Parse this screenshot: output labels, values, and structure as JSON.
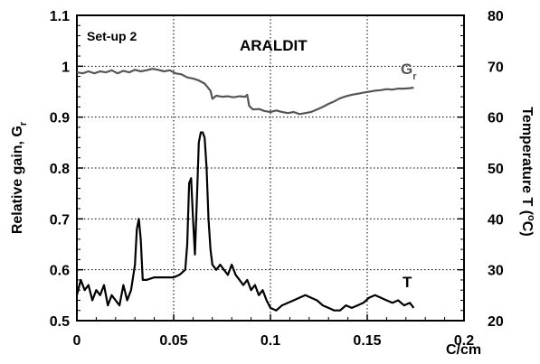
{
  "chart_data": {
    "type": "line",
    "title": "",
    "annotations": {
      "setup": "Set-up 2",
      "material": "ARALDIT"
    },
    "xlabel": "C/cm",
    "ylabel_left_main": "Relative gain, G",
    "ylabel_left_sub": "r",
    "ylabel_right_main": "Temperature T (",
    "ylabel_right_sup": "o",
    "ylabel_right_end": "C)",
    "xlim": [
      0,
      0.2
    ],
    "ylim_left": [
      0.5,
      1.1
    ],
    "ylim_right": [
      20,
      80
    ],
    "x_ticks": [
      "0",
      "0.05",
      "0.1",
      "0.15",
      "0.2"
    ],
    "y_left_ticks": [
      "0.5",
      "0.6",
      "0.7",
      "0.8",
      "0.9",
      "1",
      "1.1"
    ],
    "y_right_ticks": [
      "20",
      "30",
      "40",
      "50",
      "60",
      "70",
      "80"
    ],
    "grid": true,
    "series": [
      {
        "name_main": "G",
        "name_sub": "r",
        "axis": "left",
        "color": "#555555",
        "x": [
          0,
          0.003,
          0.006,
          0.009,
          0.012,
          0.015,
          0.018,
          0.021,
          0.024,
          0.027,
          0.03,
          0.033,
          0.036,
          0.039,
          0.042,
          0.045,
          0.048,
          0.051,
          0.054,
          0.057,
          0.06,
          0.063,
          0.066,
          0.069,
          0.07,
          0.072,
          0.075,
          0.078,
          0.081,
          0.084,
          0.087,
          0.088,
          0.089,
          0.091,
          0.094,
          0.097,
          0.1,
          0.103,
          0.106,
          0.109,
          0.112,
          0.115,
          0.118,
          0.121,
          0.124,
          0.127,
          0.13,
          0.133,
          0.136,
          0.139,
          0.142,
          0.145,
          0.148,
          0.151,
          0.154,
          0.157,
          0.16,
          0.163,
          0.166,
          0.169,
          0.172,
          0.174
        ],
        "values": [
          0.988,
          0.986,
          0.99,
          0.986,
          0.99,
          0.988,
          0.992,
          0.986,
          0.991,
          0.988,
          0.993,
          0.99,
          0.992,
          0.995,
          0.993,
          0.99,
          0.992,
          0.986,
          0.984,
          0.978,
          0.976,
          0.972,
          0.966,
          0.952,
          0.936,
          0.942,
          0.94,
          0.941,
          0.939,
          0.941,
          0.94,
          0.944,
          0.922,
          0.915,
          0.916,
          0.912,
          0.91,
          0.913,
          0.91,
          0.908,
          0.91,
          0.906,
          0.908,
          0.91,
          0.915,
          0.92,
          0.926,
          0.931,
          0.937,
          0.941,
          0.944,
          0.946,
          0.948,
          0.95,
          0.952,
          0.953,
          0.955,
          0.954,
          0.956,
          0.956,
          0.957,
          0.958
        ]
      },
      {
        "name_main": "T",
        "name_sub": "",
        "axis": "right",
        "color": "#000000",
        "x": [
          0,
          0.002,
          0.004,
          0.006,
          0.008,
          0.01,
          0.012,
          0.014,
          0.016,
          0.018,
          0.02,
          0.022,
          0.024,
          0.026,
          0.028,
          0.03,
          0.031,
          0.032,
          0.033,
          0.034,
          0.036,
          0.04,
          0.045,
          0.05,
          0.053,
          0.056,
          0.057,
          0.058,
          0.059,
          0.06,
          0.061,
          0.062,
          0.063,
          0.064,
          0.065,
          0.066,
          0.067,
          0.068,
          0.069,
          0.07,
          0.072,
          0.074,
          0.076,
          0.078,
          0.08,
          0.082,
          0.084,
          0.086,
          0.088,
          0.09,
          0.092,
          0.094,
          0.096,
          0.098,
          0.1,
          0.103,
          0.106,
          0.109,
          0.112,
          0.115,
          0.118,
          0.121,
          0.124,
          0.127,
          0.13,
          0.133,
          0.136,
          0.139,
          0.142,
          0.145,
          0.148,
          0.151,
          0.154,
          0.157,
          0.16,
          0.163,
          0.166,
          0.169,
          0.172,
          0.174
        ],
        "values": [
          25,
          28,
          26,
          27,
          24,
          26,
          25,
          27,
          23,
          25,
          24,
          23,
          27,
          24,
          26,
          31,
          38,
          40,
          36,
          28,
          28,
          28.5,
          28.5,
          28.5,
          29,
          30,
          35,
          47,
          48,
          40,
          33,
          44,
          55,
          57,
          57,
          56,
          50,
          40,
          34,
          31,
          30,
          31,
          30,
          29,
          31,
          29,
          28,
          27,
          28,
          26,
          27,
          25,
          26,
          24,
          22.5,
          22,
          23,
          23.5,
          24,
          24.5,
          25,
          24.5,
          24,
          23,
          22.5,
          22,
          22,
          23,
          22.5,
          23,
          23.5,
          24.5,
          25,
          24.5,
          24,
          23.5,
          24,
          23,
          23.5,
          22.5
        ]
      }
    ]
  }
}
